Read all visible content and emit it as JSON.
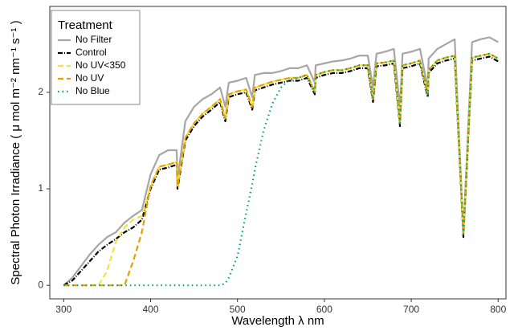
{
  "chart_data": {
    "type": "line",
    "x_label": "Wavelength  λ nm",
    "y_label": "Spectral Photon Irradiance ( μ mol m⁻² nm⁻¹ s⁻¹ )",
    "legend_title": "Treatment",
    "legend": "top-left",
    "grid": false,
    "xlim": [
      284,
      809
    ],
    "xticks": [
      300,
      400,
      500,
      600,
      700,
      800
    ],
    "ylim": [
      -0.14,
      2.89
    ],
    "yticks": [
      0,
      1,
      2
    ],
    "x": [
      300,
      310,
      320,
      330,
      340,
      350,
      360,
      370,
      380,
      390,
      400,
      410,
      420,
      430,
      431,
      440,
      450,
      460,
      470,
      480,
      486,
      490,
      500,
      510,
      517,
      520,
      530,
      540,
      550,
      560,
      570,
      580,
      589,
      590,
      600,
      610,
      620,
      630,
      640,
      650,
      656,
      660,
      670,
      680,
      687,
      690,
      700,
      710,
      719,
      720,
      730,
      740,
      750,
      760,
      770,
      780,
      790,
      800
    ],
    "series": [
      {
        "name": "No Filter",
        "color": "#a6a6a6",
        "dash": "none",
        "values": [
          0,
          0.08,
          0.2,
          0.32,
          0.42,
          0.5,
          0.55,
          0.65,
          0.72,
          0.78,
          1.15,
          1.35,
          1.4,
          1.4,
          1.1,
          1.7,
          1.85,
          1.93,
          1.98,
          2.05,
          1.85,
          2.1,
          2.12,
          2.15,
          1.95,
          2.18,
          2.2,
          2.2,
          2.22,
          2.25,
          2.25,
          2.28,
          2.1,
          2.28,
          2.3,
          2.32,
          2.33,
          2.35,
          2.38,
          2.38,
          2.05,
          2.4,
          2.42,
          2.45,
          1.85,
          2.4,
          2.42,
          2.45,
          2.05,
          2.35,
          2.45,
          2.5,
          2.55,
          0.55,
          2.52,
          2.55,
          2.57,
          2.52
        ]
      },
      {
        "name": "Control",
        "color": "#000000",
        "dash": "6,2,1,2",
        "values": [
          0,
          0.05,
          0.15,
          0.25,
          0.35,
          0.42,
          0.48,
          0.55,
          0.6,
          0.68,
          1.0,
          1.2,
          1.22,
          1.25,
          1.0,
          1.5,
          1.65,
          1.75,
          1.82,
          1.9,
          1.7,
          1.95,
          1.98,
          2.0,
          1.82,
          2.02,
          2.05,
          2.08,
          2.1,
          2.12,
          2.12,
          2.15,
          1.98,
          2.15,
          2.18,
          2.2,
          2.2,
          2.22,
          2.25,
          2.25,
          1.9,
          2.27,
          2.28,
          2.3,
          1.65,
          2.25,
          2.27,
          2.3,
          1.95,
          2.2,
          2.3,
          2.33,
          2.35,
          0.5,
          2.33,
          2.35,
          2.37,
          2.32
        ]
      },
      {
        "name": "No UV<350",
        "color": "#f0e442",
        "dash": "7,4",
        "values": [
          0,
          0,
          0,
          0,
          0,
          0.15,
          0.45,
          0.6,
          0.68,
          0.72,
          1.03,
          1.23,
          1.25,
          1.28,
          1.03,
          1.53,
          1.68,
          1.78,
          1.85,
          1.93,
          1.73,
          1.98,
          2.01,
          2.03,
          1.85,
          2.05,
          2.08,
          2.11,
          2.13,
          2.15,
          2.15,
          2.18,
          2.01,
          2.18,
          2.21,
          2.23,
          2.23,
          2.25,
          2.28,
          2.28,
          1.93,
          2.3,
          2.31,
          2.33,
          1.68,
          2.28,
          2.3,
          2.33,
          1.98,
          2.23,
          2.33,
          2.36,
          2.38,
          0.53,
          2.36,
          2.38,
          2.4,
          2.35
        ]
      },
      {
        "name": "No UV",
        "color": "#e69f00",
        "dash": "7,4",
        "values": [
          0,
          0,
          0,
          0,
          0,
          0,
          0,
          0,
          0.25,
          0.55,
          1.03,
          1.23,
          1.25,
          1.28,
          1.03,
          1.53,
          1.68,
          1.78,
          1.85,
          1.93,
          1.73,
          1.98,
          2.01,
          2.03,
          1.85,
          2.05,
          2.08,
          2.11,
          2.13,
          2.15,
          2.15,
          2.18,
          2.01,
          2.18,
          2.21,
          2.23,
          2.23,
          2.25,
          2.28,
          2.28,
          1.93,
          2.3,
          2.31,
          2.33,
          1.68,
          2.28,
          2.3,
          2.33,
          1.98,
          2.23,
          2.33,
          2.36,
          2.38,
          0.53,
          2.36,
          2.38,
          2.4,
          2.35
        ]
      },
      {
        "name": "No Blue",
        "color": "#009e73",
        "dash": "1.5,4",
        "values": [
          0,
          0,
          0,
          0,
          0,
          0,
          0,
          0,
          0,
          0,
          0,
          0,
          0,
          0,
          0,
          0,
          0,
          0,
          0,
          0,
          0.02,
          0.08,
          0.3,
          0.75,
          1.05,
          1.2,
          1.6,
          1.88,
          2.05,
          2.13,
          2.15,
          2.18,
          2.0,
          2.18,
          2.21,
          2.23,
          2.23,
          2.25,
          2.28,
          2.28,
          1.93,
          2.3,
          2.31,
          2.33,
          1.68,
          2.28,
          2.3,
          2.33,
          1.98,
          2.23,
          2.33,
          2.36,
          2.38,
          0.53,
          2.36,
          2.38,
          2.4,
          2.35
        ]
      }
    ]
  }
}
